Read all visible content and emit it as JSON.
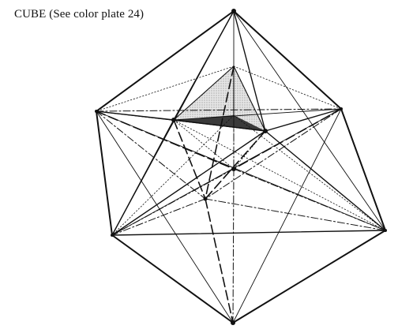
{
  "figure": {
    "caption": "CUBE (See color plate 24)",
    "colors": {
      "ink": "#111111",
      "face_light": "#d9d9d9",
      "face_dark": "#3a3a3a"
    }
  }
}
